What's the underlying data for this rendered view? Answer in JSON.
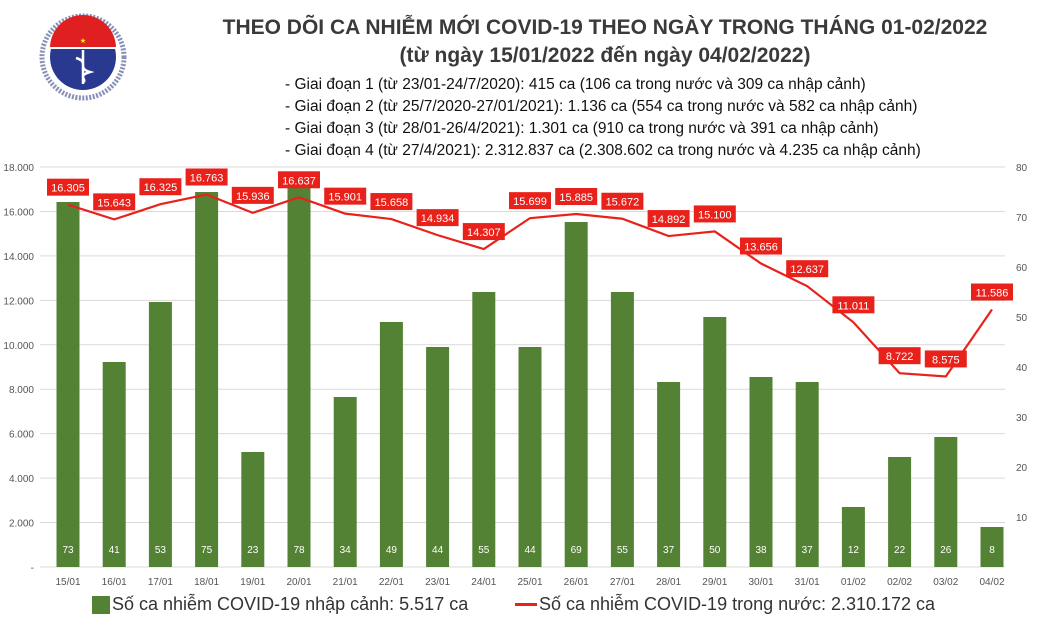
{
  "logo": {
    "top_text": "BỘ Y TẾ",
    "bottom_text": "MINISTRY OF HEALTH"
  },
  "header": {
    "title": "THEO DÕI CA NHIỄM MỚI COVID-19 THEO NGÀY TRONG THÁNG 01-02/2022",
    "subtitle": "(từ ngày 15/01/2022 đến ngày 04/02/2022)",
    "stages": [
      "- Giai đoạn 1 (từ 23/01-24/7/2020): 415 ca (106 ca trong nước và 309 ca nhập cảnh)",
      "- Giai đoạn 2 (từ 25/7/2020-27/01/2021): 1.136 ca (554 ca trong nước và 582 ca nhập cảnh)",
      "- Giai đoạn 3 (từ 28/01-26/4/2021): 1.301 ca (910 ca trong nước và 391 ca nhập cảnh)",
      "- Giai đoạn 4 (từ 27/4/2021): 2.312.837 ca (2.308.602 ca trong nước và 4.235 ca nhập cảnh)"
    ]
  },
  "chart_data": {
    "type": "bar+line",
    "categories": [
      "15/01",
      "16/01",
      "17/01",
      "18/01",
      "19/01",
      "20/01",
      "21/01",
      "22/01",
      "23/01",
      "24/01",
      "25/01",
      "26/01",
      "27/01",
      "28/01",
      "29/01",
      "30/01",
      "31/01",
      "01/02",
      "02/02",
      "03/02",
      "04/02"
    ],
    "series": [
      {
        "name": "Số ca nhiễm COVID-19 nhập cảnh: 5.517 ca",
        "type": "bar",
        "axis": "right",
        "color": "#548235",
        "values": [
          73,
          41,
          53,
          75,
          23,
          78,
          34,
          49,
          44,
          55,
          44,
          69,
          55,
          37,
          50,
          38,
          37,
          12,
          22,
          26,
          8
        ],
        "labels": [
          "73",
          "41",
          "53",
          "75",
          "23",
          "78",
          "34",
          "49",
          "44",
          "55",
          "44",
          "69",
          "55",
          "37",
          "50",
          "38",
          "37",
          "12",
          "22",
          "26",
          "8"
        ]
      },
      {
        "name": "Số ca nhiễm COVID-19 trong nước: 2.310.172 ca",
        "type": "line",
        "axis": "left",
        "color": "#e8221b",
        "values": [
          16305,
          15643,
          16325,
          16763,
          15936,
          16637,
          15901,
          15658,
          14934,
          14307,
          15699,
          15885,
          15672,
          14892,
          15100,
          13656,
          12637,
          11011,
          8722,
          8575,
          11586
        ],
        "labels": [
          "16.305",
          "15.643",
          "16.325",
          "16.763",
          "15.936",
          "16.637",
          "15.901",
          "15.658",
          "14.934",
          "14.307",
          "15.699",
          "15.885",
          "15.672",
          "14.892",
          "15.100",
          "13.656",
          "12.637",
          "11.011",
          "8.722",
          "8.575",
          "11.586"
        ]
      }
    ],
    "y_left": {
      "range": [
        0,
        18000
      ],
      "ticks": [
        "-",
        "2.000",
        "4.000",
        "6.000",
        "8.000",
        "10.000",
        "12.000",
        "14.000",
        "16.000",
        "18.000"
      ]
    },
    "y_right": {
      "range": [
        0,
        80
      ],
      "ticks": [
        "10",
        "20",
        "30",
        "40",
        "50",
        "60",
        "70",
        "80"
      ]
    },
    "grid": true,
    "legend": "bottom"
  }
}
